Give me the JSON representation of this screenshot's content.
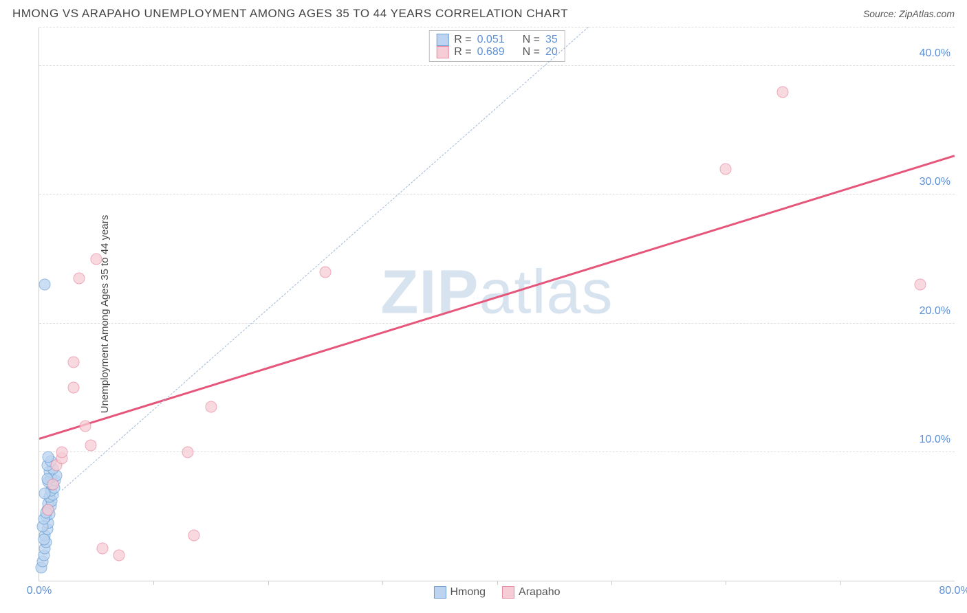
{
  "header": {
    "title": "HMONG VS ARAPAHO UNEMPLOYMENT AMONG AGES 35 TO 44 YEARS CORRELATION CHART",
    "source": "Source: ZipAtlas.com"
  },
  "watermark": {
    "bold": "ZIP",
    "rest": "atlas"
  },
  "chart": {
    "type": "scatter",
    "ylabel": "Unemployment Among Ages 35 to 44 years",
    "xlim": [
      0,
      80
    ],
    "ylim": [
      0,
      43
    ],
    "x_ticks": [
      {
        "v": 0,
        "label": "0.0%"
      },
      {
        "v": 80,
        "label": "80.0%"
      }
    ],
    "x_minor_ticks": [
      10,
      20,
      30,
      40,
      50,
      60,
      70
    ],
    "y_ticks": [
      {
        "v": 10,
        "label": "10.0%"
      },
      {
        "v": 20,
        "label": "20.0%"
      },
      {
        "v": 30,
        "label": "30.0%"
      },
      {
        "v": 40,
        "label": "40.0%"
      }
    ],
    "grid_color": "#dddddd",
    "background_color": "#ffffff",
    "axis_color": "#cccccc",
    "tick_font_color": "#5b8fd6",
    "tick_fontsize": 16,
    "label_fontsize": 15,
    "marker_radius": 8.5,
    "marker_opacity": 0.75,
    "series": {
      "hmong": {
        "label": "Hmong",
        "fill": "#bcd4ef",
        "stroke": "#6a9fd4",
        "points": [
          {
            "x": 0.2,
            "y": 1.0
          },
          {
            "x": 0.3,
            "y": 1.5
          },
          {
            "x": 0.4,
            "y": 2.0
          },
          {
            "x": 0.5,
            "y": 2.5
          },
          {
            "x": 0.6,
            "y": 3.0
          },
          {
            "x": 0.5,
            "y": 3.5
          },
          {
            "x": 0.7,
            "y": 4.0
          },
          {
            "x": 0.8,
            "y": 4.5
          },
          {
            "x": 0.6,
            "y": 5.0
          },
          {
            "x": 0.9,
            "y": 5.2
          },
          {
            "x": 0.7,
            "y": 5.5
          },
          {
            "x": 1.0,
            "y": 5.8
          },
          {
            "x": 0.8,
            "y": 6.0
          },
          {
            "x": 1.1,
            "y": 6.2
          },
          {
            "x": 0.9,
            "y": 6.5
          },
          {
            "x": 1.2,
            "y": 6.7
          },
          {
            "x": 1.0,
            "y": 7.0
          },
          {
            "x": 1.3,
            "y": 7.2
          },
          {
            "x": 1.1,
            "y": 7.5
          },
          {
            "x": 0.8,
            "y": 7.7
          },
          {
            "x": 1.4,
            "y": 7.8
          },
          {
            "x": 1.0,
            "y": 8.0
          },
          {
            "x": 1.5,
            "y": 8.2
          },
          {
            "x": 0.9,
            "y": 8.5
          },
          {
            "x": 1.2,
            "y": 8.7
          },
          {
            "x": 0.7,
            "y": 9.0
          },
          {
            "x": 1.0,
            "y": 9.3
          },
          {
            "x": 0.8,
            "y": 9.6
          },
          {
            "x": 0.5,
            "y": 23.0
          },
          {
            "x": 0.3,
            "y": 4.2
          },
          {
            "x": 0.4,
            "y": 4.8
          },
          {
            "x": 0.6,
            "y": 5.3
          },
          {
            "x": 0.5,
            "y": 6.8
          },
          {
            "x": 0.7,
            "y": 7.9
          },
          {
            "x": 0.4,
            "y": 3.2
          }
        ],
        "trend_dash": {
          "color": "#9fb8d8",
          "x1": 2,
          "y1": 7,
          "x2": 48,
          "y2": 43
        }
      },
      "arapaho": {
        "label": "Arapaho",
        "fill": "#f6cdd6",
        "stroke": "#e88ba3",
        "points": [
          {
            "x": 0.8,
            "y": 5.5
          },
          {
            "x": 1.2,
            "y": 7.5
          },
          {
            "x": 1.5,
            "y": 9.0
          },
          {
            "x": 2.0,
            "y": 9.5
          },
          {
            "x": 2.0,
            "y": 10.0
          },
          {
            "x": 4.5,
            "y": 10.5
          },
          {
            "x": 5.5,
            "y": 2.5
          },
          {
            "x": 7.0,
            "y": 2.0
          },
          {
            "x": 4.0,
            "y": 12.0
          },
          {
            "x": 3.0,
            "y": 15.0
          },
          {
            "x": 3.0,
            "y": 17.0
          },
          {
            "x": 3.5,
            "y": 23.5
          },
          {
            "x": 5.0,
            "y": 25.0
          },
          {
            "x": 13.0,
            "y": 10.0
          },
          {
            "x": 13.5,
            "y": 3.5
          },
          {
            "x": 15.0,
            "y": 13.5
          },
          {
            "x": 25.0,
            "y": 24.0
          },
          {
            "x": 60.0,
            "y": 32.0
          },
          {
            "x": 65.0,
            "y": 38.0
          },
          {
            "x": 77.0,
            "y": 23.0
          }
        ],
        "trend": {
          "color": "#e6557a",
          "width": 2.5,
          "x1": 0,
          "y1": 11,
          "x2": 80,
          "y2": 33
        }
      }
    },
    "stats": [
      {
        "series": "hmong",
        "r": "0.051",
        "n": "35"
      },
      {
        "series": "arapaho",
        "r": "0.689",
        "n": "20"
      }
    ],
    "stats_labels": {
      "r": "R =",
      "n": "N ="
    }
  }
}
